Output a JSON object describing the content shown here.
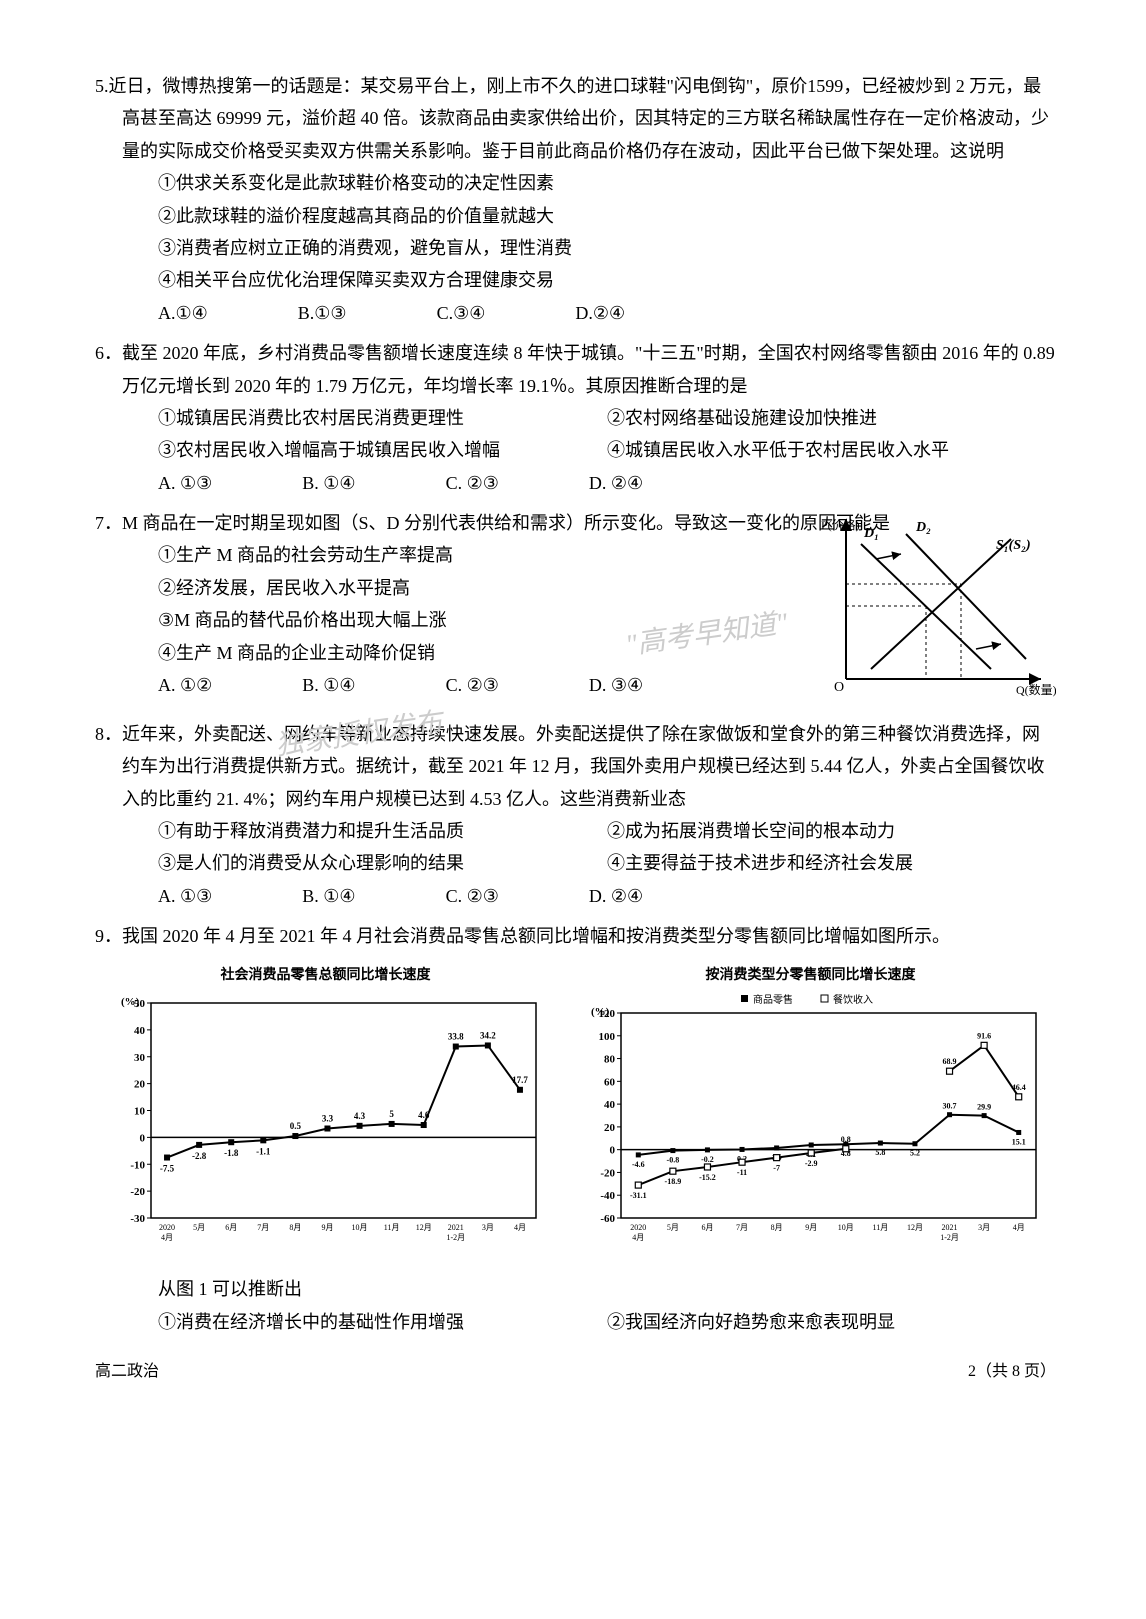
{
  "q5": {
    "num": "5.",
    "stem": "近日，微博热搜第一的话题是：某交易平台上，刚上市不久的进口球鞋\"闪电倒钩\"，原价1599，已经被炒到 2 万元，最高甚至高达 69999 元，溢价超 40 倍。该款商品由卖家供给出价，因其特定的三方联名稀缺属性存在一定价格波动，少量的实际成交价格受买卖双方供需关系影响。鉴于目前此商品价格仍存在波动，因此平台已做下架处理。这说明",
    "s1": "①供求关系变化是此款球鞋价格变动的决定性因素",
    "s2": "②此款球鞋的溢价程度越高其商品的价值量就越大",
    "s3": "③消费者应树立正确的消费观，避免盲从，理性消费",
    "s4": "④相关平台应优化治理保障买卖双方合理健康交易",
    "oa": "A.①④",
    "ob": "B.①③",
    "oc": "C.③④",
    "od": "D.②④"
  },
  "q6": {
    "num": "6．",
    "stem": "截至 2020 年底，乡村消费品零售额增长速度连续 8 年快于城镇。\"十三五\"时期，全国农村网络零售额由 2016 年的 0.89 万亿元增长到 2020 年的 1.79 万亿元，年均增长率 19.1％。其原因推断合理的是",
    "s1": "①城镇居民消费比农村居民消费更理性",
    "s2": "②农村网络基础设施建设加快推进",
    "s3": "③农村居民收入增幅高于城镇居民收入增幅",
    "s4": "④城镇居民收入水平低于农村居民收入水平",
    "oa": "A. ①③",
    "ob": "B. ①④",
    "oc": "C. ②③",
    "od": "D. ②④"
  },
  "q7": {
    "num": "7．",
    "stem": "M 商品在一定时期呈现如图（S、D 分别代表供给和需求）所示变化。导致这一变化的原因可能是",
    "s1": "①生产 M 商品的社会劳动生产率提高",
    "s2": "②经济发展，居民收入水平提高",
    "s3": "③M 商品的替代品价格出现大幅上涨",
    "s4": "④生产 M 商品的企业主动降价促销",
    "oa": "A. ①②",
    "ob": "B. ①④",
    "oc": "C. ②③",
    "od": "D. ③④",
    "chart": {
      "y_label": "P(价格)",
      "x_label": "Q(数量)",
      "origin": "O",
      "d1": "D₁",
      "d2": "D₂",
      "s": "S₁(S₂)"
    }
  },
  "q8": {
    "num": "8．",
    "stem": "近年来，外卖配送、网约车等新业态持续快速发展。外卖配送提供了除在家做饭和堂食外的第三种餐饮消费选择，网约车为出行消费提供新方式。据统计，截至 2021 年 12 月，我国外卖用户规模已经达到 5.44 亿人，外卖占全国餐饮收入的比重约 21. 4%；网约车用户规模已达到 4.53 亿人。这些消费新业态",
    "s1": "①有助于释放消费潜力和提升生活品质",
    "s2": "②成为拓展消费增长空间的根本动力",
    "s3": "③是人们的消费受从众心理影响的结果",
    "s4": "④主要得益于技术进步和经济社会发展",
    "oa": "A. ①③",
    "ob": "B. ①④",
    "oc": "C. ②③",
    "od": "D. ②④"
  },
  "q9": {
    "num": "9．",
    "stem": "我国 2020 年 4 月至 2021 年 4 月社会消费品零售总额同比增幅和按消费类型分零售额同比增幅如图所示。",
    "chart1": {
      "title": "社会消费品零售总额同比增长速度",
      "y_unit": "(%)",
      "ylim": [
        -30,
        50
      ],
      "ytick_step": 10,
      "x_labels": [
        "2020\\n4月",
        "5月",
        "6月",
        "7月",
        "8月",
        "9月",
        "10月",
        "11月",
        "12月",
        "2021\\n1-2月",
        "3月",
        "4月"
      ],
      "values": [
        -7.5,
        -2.8,
        -1.8,
        -1.1,
        0.5,
        3.3,
        4.3,
        5.0,
        4.6,
        33.8,
        34.2,
        17.7
      ],
      "label_fontsize": 9,
      "line_color": "#000",
      "marker": "square"
    },
    "chart2": {
      "title": "按消费类型分零售额同比增长速度",
      "legend": [
        "商品零售",
        "餐饮收入"
      ],
      "y_unit": "(%)",
      "ylim": [
        -60,
        120
      ],
      "ytick_step": 20,
      "x_labels": [
        "2020\\n4月",
        "5月",
        "6月",
        "7月",
        "8月",
        "9月",
        "10月",
        "11月",
        "12月",
        "2021\\n1-2月",
        "3月",
        "4月"
      ],
      "goods": [
        -4.6,
        -0.8,
        -0.2,
        0.2,
        1.5,
        4.1,
        4.8,
        5.8,
        5.2,
        30.7,
        29.9,
        15.1
      ],
      "dining": [
        -31.1,
        -18.9,
        -15.2,
        -11.0,
        -7.0,
        -2.9,
        0.8,
        null,
        null,
        68.9,
        91.6,
        46.4
      ],
      "label_fontsize": 8,
      "line_color": "#000"
    },
    "after": "从图 1 可以推断出",
    "s1": "①消费在经济增长中的基础性作用增强",
    "s2": "②我国经济向好趋势愈来愈表现明显"
  },
  "footer": {
    "left": "高二政治",
    "right": "2（共 8 页）"
  },
  "watermark": {
    "t1": "\"高考早知道\"",
    "t2": "独家授权发布"
  }
}
